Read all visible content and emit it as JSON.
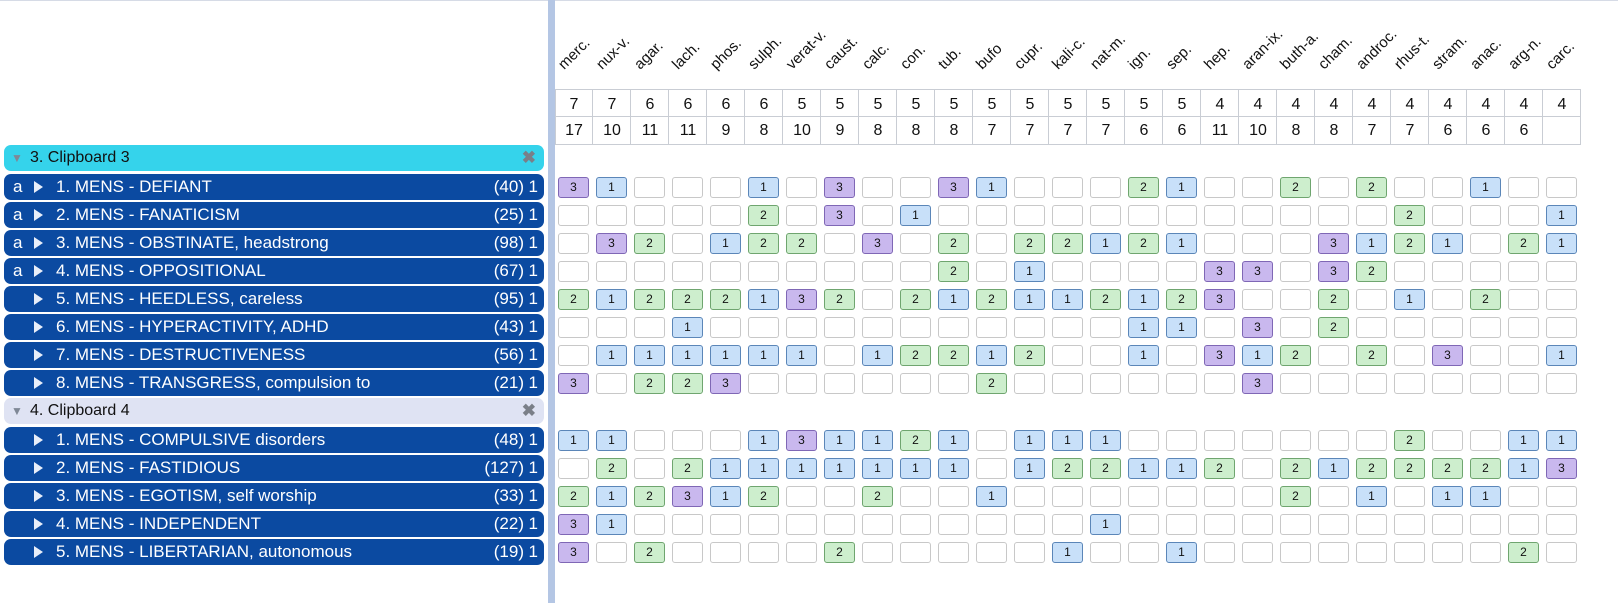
{
  "remedies": [
    "merc.",
    "nux-v.",
    "agar.",
    "lach.",
    "phos.",
    "sulph.",
    "verat-v.",
    "caust.",
    "calc.",
    "con.",
    "tub.",
    "bufo",
    "cupr.",
    "kali-c.",
    "nat-m.",
    "ign.",
    "sep.",
    "hep.",
    "aran-ix.",
    "buth-a.",
    "cham.",
    "androc.",
    "rhus-t.",
    "stram.",
    "anac.",
    "arg-n.",
    "carc."
  ],
  "scores": [
    "7",
    "7",
    "6",
    "6",
    "6",
    "6",
    "5",
    "5",
    "5",
    "5",
    "5",
    "5",
    "5",
    "5",
    "5",
    "5",
    "5",
    "4",
    "4",
    "4",
    "4",
    "4",
    "4",
    "4",
    "4",
    "4",
    "4"
  ],
  "rubric_counts": [
    "17",
    "10",
    "11",
    "11",
    "9",
    "8",
    "10",
    "9",
    "8",
    "8",
    "8",
    "7",
    "7",
    "7",
    "7",
    "6",
    "6",
    "11",
    "10",
    "8",
    "8",
    "7",
    "7",
    "6",
    "6",
    "6",
    ""
  ],
  "clipboards": [
    {
      "title": "3. Clipboard 3",
      "style": "active",
      "close_glyph": "✖",
      "rows": [
        {
          "a": "a",
          "label": "1. MENS - DEFIANT",
          "count": "(40)",
          "weight": "1",
          "cells": [
            3,
            1,
            0,
            0,
            0,
            1,
            0,
            3,
            0,
            0,
            3,
            1,
            0,
            0,
            0,
            2,
            1,
            0,
            0,
            2,
            0,
            2,
            0,
            0,
            1,
            0,
            0
          ]
        },
        {
          "a": "a",
          "label": "2. MENS - FANATICISM",
          "count": "(25)",
          "weight": "1",
          "cells": [
            0,
            0,
            0,
            0,
            0,
            2,
            0,
            3,
            0,
            1,
            0,
            0,
            0,
            0,
            0,
            0,
            0,
            0,
            0,
            0,
            0,
            0,
            2,
            0,
            0,
            0,
            1
          ]
        },
        {
          "a": "a",
          "label": "3. MENS - OBSTINATE, headstrong",
          "count": "(98)",
          "weight": "1",
          "cells": [
            0,
            3,
            2,
            0,
            1,
            2,
            2,
            0,
            3,
            0,
            2,
            0,
            2,
            2,
            1,
            2,
            1,
            0,
            0,
            0,
            3,
            1,
            2,
            1,
            0,
            2,
            1
          ]
        },
        {
          "a": "a",
          "label": "4. MENS - OPPOSITIONAL",
          "count": "(67)",
          "weight": "1",
          "cells": [
            0,
            0,
            0,
            0,
            0,
            0,
            0,
            0,
            0,
            0,
            2,
            0,
            1,
            0,
            0,
            0,
            0,
            3,
            3,
            0,
            3,
            2,
            0,
            0,
            0,
            0,
            0
          ]
        },
        {
          "a": "",
          "label": "5. MENS - HEEDLESS, careless",
          "count": "(95)",
          "weight": "1",
          "cells": [
            2,
            1,
            2,
            2,
            2,
            1,
            3,
            2,
            0,
            2,
            1,
            2,
            1,
            1,
            2,
            1,
            2,
            3,
            0,
            0,
            2,
            0,
            1,
            0,
            2,
            0,
            0
          ]
        },
        {
          "a": "",
          "label": "6. MENS - HYPERACTIVITY, ADHD",
          "count": "(43)",
          "weight": "1",
          "cells": [
            0,
            0,
            0,
            1,
            0,
            0,
            0,
            0,
            0,
            0,
            0,
            0,
            0,
            0,
            0,
            1,
            1,
            0,
            3,
            0,
            2,
            0,
            0,
            0,
            0,
            0,
            0
          ]
        },
        {
          "a": "",
          "label": "7. MENS - DESTRUCTIVENESS",
          "count": "(56)",
          "weight": "1",
          "cells": [
            0,
            1,
            1,
            1,
            1,
            1,
            1,
            0,
            1,
            2,
            2,
            1,
            2,
            0,
            0,
            1,
            0,
            3,
            1,
            2,
            0,
            2,
            0,
            3,
            0,
            0,
            1
          ]
        },
        {
          "a": "",
          "label": "8. MENS - TRANSGRESS, compulsion to",
          "count": "(21)",
          "weight": "1",
          "cells": [
            3,
            0,
            2,
            2,
            3,
            0,
            0,
            0,
            0,
            0,
            0,
            2,
            0,
            0,
            0,
            0,
            0,
            0,
            3,
            0,
            0,
            0,
            0,
            0,
            0,
            0,
            0
          ]
        }
      ]
    },
    {
      "title": "4. Clipboard 4",
      "style": "inactive",
      "close_glyph": "✖",
      "rows": [
        {
          "a": "",
          "label": "1. MENS - COMPULSIVE disorders",
          "count": "(48)",
          "weight": "1",
          "cells": [
            1,
            1,
            0,
            0,
            0,
            1,
            3,
            1,
            1,
            2,
            1,
            0,
            1,
            1,
            1,
            0,
            0,
            0,
            0,
            0,
            0,
            0,
            2,
            0,
            0,
            1,
            1
          ]
        },
        {
          "a": "",
          "label": "2. MENS - FASTIDIOUS",
          "count": "(127)",
          "weight": "1",
          "cells": [
            0,
            2,
            0,
            2,
            1,
            1,
            1,
            1,
            1,
            1,
            1,
            0,
            1,
            2,
            2,
            1,
            1,
            2,
            0,
            2,
            1,
            2,
            2,
            2,
            2,
            1,
            3
          ]
        },
        {
          "a": "",
          "label": "3. MENS - EGOTISM, self worship",
          "count": "(33)",
          "weight": "1",
          "cells": [
            2,
            1,
            2,
            3,
            1,
            2,
            0,
            0,
            2,
            0,
            0,
            1,
            0,
            0,
            0,
            0,
            0,
            0,
            0,
            2,
            0,
            1,
            0,
            1,
            1,
            0,
            0
          ]
        },
        {
          "a": "",
          "label": "4. MENS - INDEPENDENT",
          "count": "(22)",
          "weight": "1",
          "cells": [
            3,
            1,
            0,
            0,
            0,
            0,
            0,
            0,
            0,
            0,
            0,
            0,
            0,
            0,
            1,
            0,
            0,
            0,
            0,
            0,
            0,
            0,
            0,
            0,
            0,
            0,
            0
          ]
        },
        {
          "a": "",
          "label": "5. MENS - LIBERTARIAN, autonomous",
          "count": "(19)",
          "weight": "1",
          "cells": [
            3,
            0,
            2,
            0,
            0,
            0,
            0,
            2,
            0,
            0,
            0,
            0,
            0,
            1,
            0,
            0,
            1,
            0,
            0,
            0,
            0,
            0,
            0,
            0,
            0,
            2,
            0
          ]
        }
      ]
    }
  ],
  "colors": {
    "row_bg": "#0b4aa1",
    "active_header_bg": "#35d3eb",
    "inactive_header_bg": "#dfe3f3",
    "grade1": "#c8e0f9",
    "grade2": "#cdeecd",
    "grade3": "#c9b8ee"
  }
}
